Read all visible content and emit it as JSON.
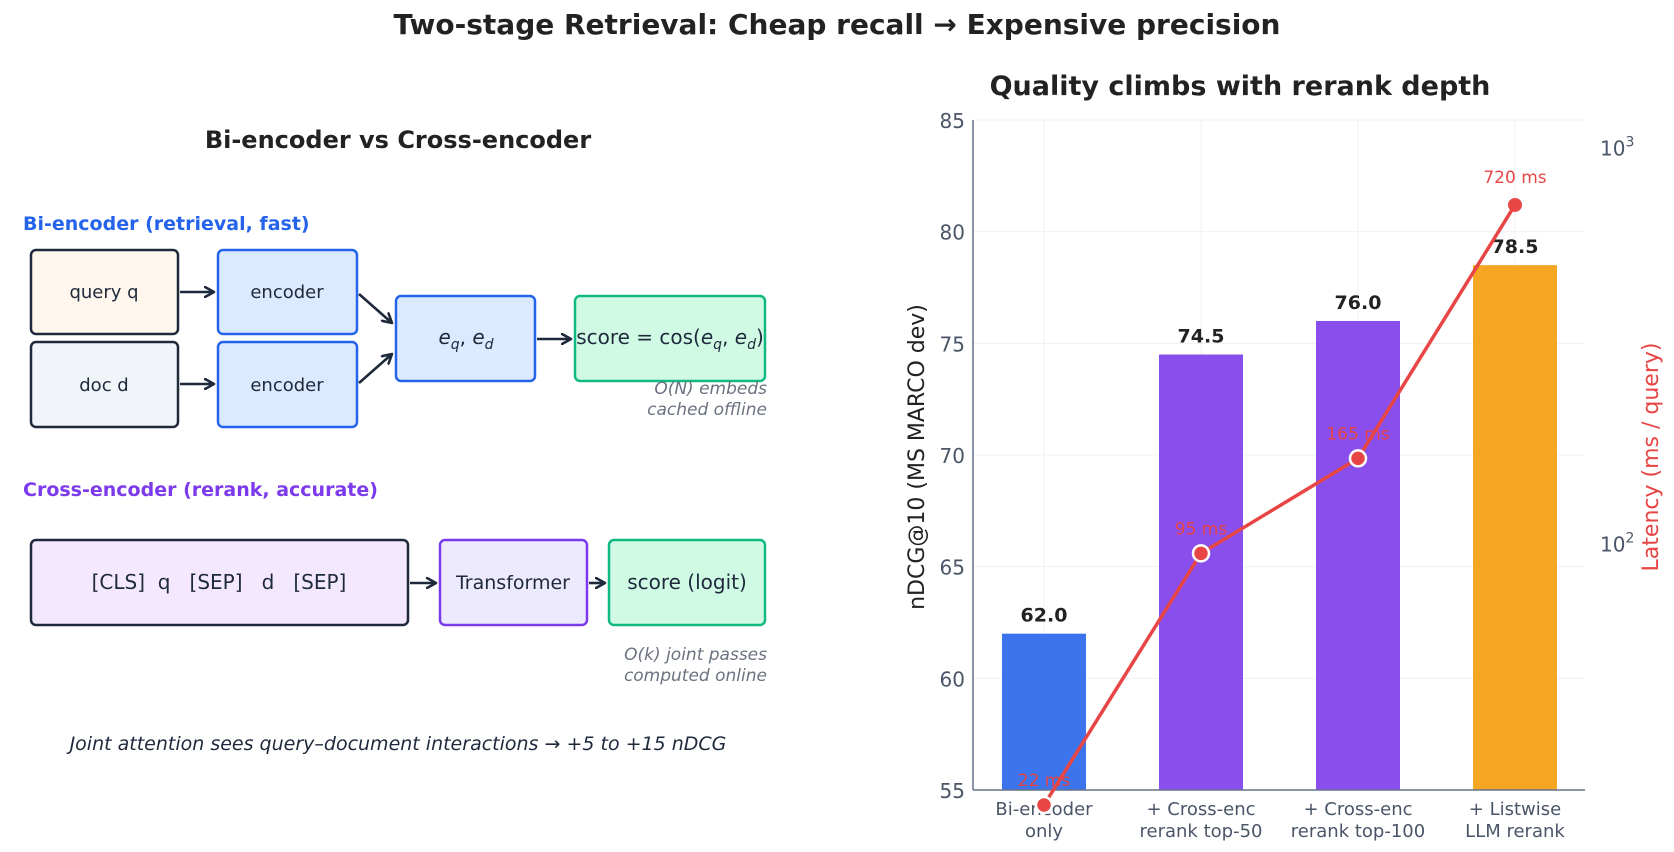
{
  "title": "Two-stage Retrieval:  Cheap recall  →  Expensive precision",
  "diagram": {
    "title": "Bi-encoder vs Cross-encoder",
    "bi": {
      "label": "Bi-encoder  (retrieval, fast)",
      "query": "query q",
      "doc": "doc d",
      "encoder_top": "encoder",
      "encoder_bottom": "encoder",
      "embeds_base_e": "e",
      "sub_q": "q",
      "sub_d": "d",
      "comma": ", ",
      "score_prefix": "score = cos(",
      "score_suffix": ")",
      "note_line1": "O(N) embeds",
      "note_line2": "cached offline"
    },
    "cross": {
      "label": "Cross-encoder  (rerank, accurate)",
      "input": "[CLS]  q   [SEP]   d   [SEP]",
      "model": "Transformer",
      "score": "score (logit)",
      "note_line1": "O(k) joint passes",
      "note_line2": "computed online"
    },
    "footer": "Joint attention sees query–document interactions  →  +5 to +15 nDCG"
  },
  "chart_data": {
    "type": "bar",
    "title": "Quality climbs with rerank depth",
    "categories": [
      [
        "Bi-encoder",
        "only"
      ],
      [
        "+ Cross-enc",
        "rerank top-50"
      ],
      [
        "+ Cross-enc",
        "rerank top-100"
      ],
      [
        "+ Listwise",
        "LLM rerank"
      ]
    ],
    "values": [
      62.0,
      74.5,
      76.0,
      78.5
    ],
    "value_labels": [
      "62.0",
      "74.5",
      "76.0",
      "78.5"
    ],
    "bar_colors": [
      "#3b74ec",
      "#8a4eec",
      "#8a4eec",
      "#f5a623"
    ],
    "ylabel": "nDCG@10  (MS MARCO dev)",
    "ylim": [
      55,
      85
    ],
    "yticks": [
      "55",
      "60",
      "65",
      "70",
      "75",
      "80",
      "85"
    ],
    "secondary": {
      "name": "Latency",
      "ylabel": "Latency  (ms / query)",
      "scale": "log",
      "ylim": [
        24,
        1180
      ],
      "ticks": [
        100,
        1000
      ],
      "tick_base": "10",
      "tick_exps": [
        "2",
        "3"
      ],
      "values": [
        22,
        95,
        165,
        720
      ],
      "labels": [
        "22 ms",
        "95 ms",
        "165 ms",
        "720 ms"
      ],
      "color": "#e84545"
    },
    "grid": true
  }
}
